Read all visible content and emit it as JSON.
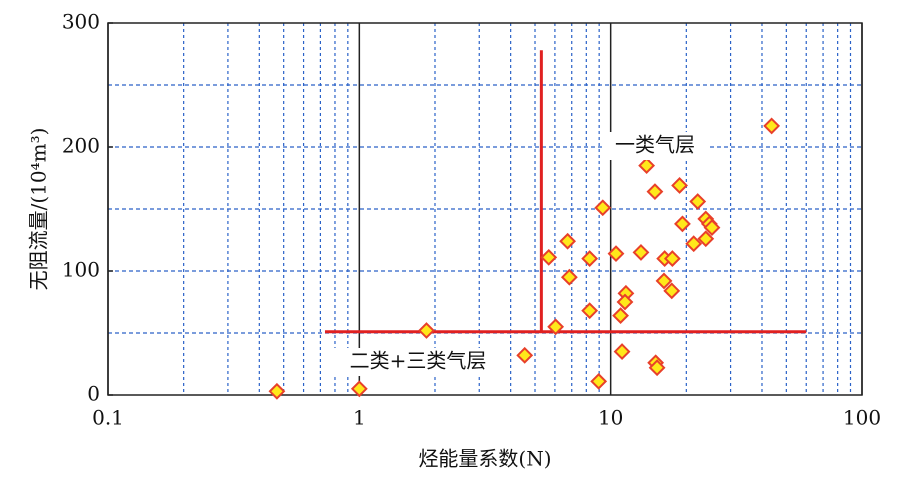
{
  "chart_data": {
    "type": "scatter",
    "x_label": "烃能量系数(N)",
    "y_label": "无阻流量/(10⁴m³)",
    "xscale": "log",
    "xlim": [
      0.1,
      100
    ],
    "ylim": [
      0,
      300
    ],
    "xticks": [
      0.1,
      1,
      10,
      100
    ],
    "yticks": [
      0,
      100,
      200,
      300
    ],
    "x_minor_grid": [
      0.2,
      0.3,
      0.4,
      0.5,
      0.6,
      0.7,
      0.8,
      0.9,
      2,
      3,
      4,
      5,
      6,
      7,
      8,
      9,
      20,
      30,
      40,
      50,
      60,
      70,
      80,
      90
    ],
    "y_grid": [
      50,
      100,
      150,
      200,
      250
    ],
    "marker_fill": "#ffe81a",
    "marker_edge": "#e8402a",
    "line_color": "#e02020",
    "series": [
      {
        "x": [
          0.47,
          1,
          1.85,
          4.55,
          5.67,
          6.04,
          6.74,
          6.85,
          8.25,
          8.25,
          8.96,
          9.3,
          10.5,
          10.95,
          11.1,
          11.5,
          11.4,
          13.2,
          13.9,
          15.0,
          15.1,
          15.3,
          16.3,
          16.4,
          17.5,
          17.6,
          18.8,
          19.3,
          21.4,
          22.2,
          23.9,
          23.9,
          24.7,
          25.3,
          43.7
        ],
        "values": [
          3,
          5,
          52,
          32,
          111,
          55,
          124,
          95,
          110,
          68,
          11,
          151,
          114,
          64,
          35,
          82,
          75,
          115,
          185,
          164,
          26,
          22,
          92,
          110,
          84,
          110,
          169,
          138,
          122,
          156,
          142,
          126,
          138,
          135,
          217
        ]
      }
    ],
    "hline": {
      "y": 51,
      "x": [
        0.73,
        60
      ]
    },
    "vline": {
      "x": 5.3,
      "y": [
        51,
        278
      ]
    },
    "annotations": [
      "一类气层",
      "二类+三类气层"
    ]
  }
}
